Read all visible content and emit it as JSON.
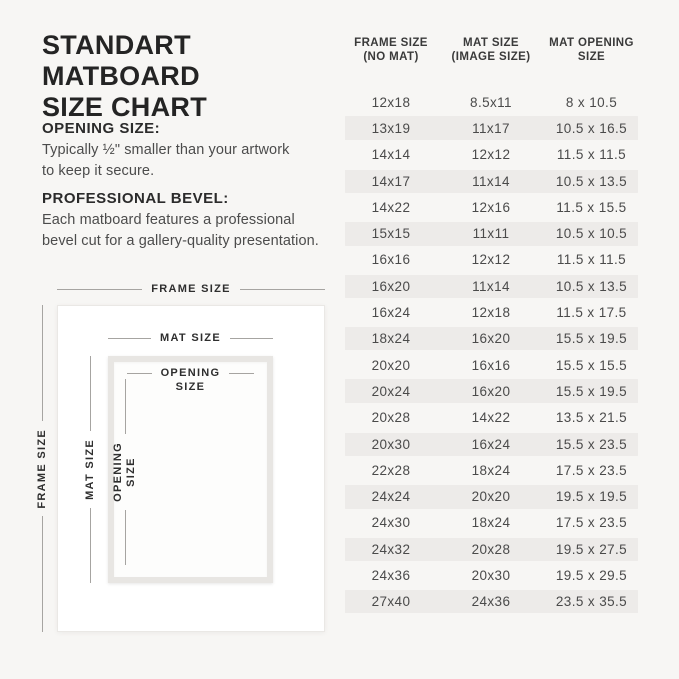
{
  "colors": {
    "background": "#f7f6f4",
    "row_shade": "#edebe9",
    "title_text": "#242424",
    "body_text": "#4c4c4c",
    "dimension_line": "#a6a4a1"
  },
  "header": {
    "title_line1": "STANDART MATBOARD",
    "title_line2": "SIZE CHART"
  },
  "notes": [
    {
      "heading": "OPENING SIZE:",
      "body_line1": "Typically ½\" smaller than your artwork",
      "body_line2": "to keep it secure."
    },
    {
      "heading": "PROFESSIONAL BEVEL:",
      "body_line1": "Each matboard features a professional",
      "body_line2": "bevel cut for a gallery-quality presentation."
    }
  ],
  "diagram": {
    "frame_size_label": "FRAME SIZE",
    "mat_size_label": "MAT SIZE",
    "opening_size_line1": "OPENING",
    "opening_size_line2": "SIZE",
    "frame_size_vertical_label": "FRAME SIZE",
    "mat_size_vertical_label": "MAT SIZE",
    "opening_size_vertical_line1": "OPENING",
    "opening_size_vertical_line2": "SIZE"
  },
  "table": {
    "headers": [
      {
        "line1": "FRAME SIZE",
        "line2": "(NO MAT)"
      },
      {
        "line1": "MAT SIZE",
        "line2": "(IMAGE SIZE)"
      },
      {
        "line1": "MAT OPENING",
        "line2": "SIZE"
      }
    ],
    "rows": [
      {
        "frame": "12x18",
        "mat": "8.5x11",
        "opening": "8 x 10.5"
      },
      {
        "frame": "13x19",
        "mat": "11x17",
        "opening": "10.5 x 16.5"
      },
      {
        "frame": "14x14",
        "mat": "12x12",
        "opening": "11.5 x 11.5"
      },
      {
        "frame": "14x17",
        "mat": "11x14",
        "opening": "10.5 x 13.5"
      },
      {
        "frame": "14x22",
        "mat": "12x16",
        "opening": "11.5 x 15.5"
      },
      {
        "frame": "15x15",
        "mat": "11x11",
        "opening": "10.5 x 10.5"
      },
      {
        "frame": "16x16",
        "mat": "12x12",
        "opening": "11.5 x 11.5"
      },
      {
        "frame": "16x20",
        "mat": "11x14",
        "opening": "10.5 x 13.5"
      },
      {
        "frame": "16x24",
        "mat": "12x18",
        "opening": "11.5 x 17.5"
      },
      {
        "frame": "18x24",
        "mat": "16x20",
        "opening": "15.5 x 19.5"
      },
      {
        "frame": "20x20",
        "mat": "16x16",
        "opening": "15.5 x 15.5"
      },
      {
        "frame": "20x24",
        "mat": "16x20",
        "opening": "15.5 x 19.5"
      },
      {
        "frame": "20x28",
        "mat": "14x22",
        "opening": "13.5 x 21.5"
      },
      {
        "frame": "20x30",
        "mat": "16x24",
        "opening": "15.5 x 23.5"
      },
      {
        "frame": "22x28",
        "mat": "18x24",
        "opening": "17.5 x 23.5"
      },
      {
        "frame": "24x24",
        "mat": "20x20",
        "opening": "19.5 x 19.5"
      },
      {
        "frame": "24x30",
        "mat": "18x24",
        "opening": "17.5 x 23.5"
      },
      {
        "frame": "24x32",
        "mat": "20x28",
        "opening": "19.5 x 27.5"
      },
      {
        "frame": "24x36",
        "mat": "20x30",
        "opening": "19.5 x 29.5"
      },
      {
        "frame": "27x40",
        "mat": "24x36",
        "opening": "23.5 x 35.5"
      }
    ]
  }
}
